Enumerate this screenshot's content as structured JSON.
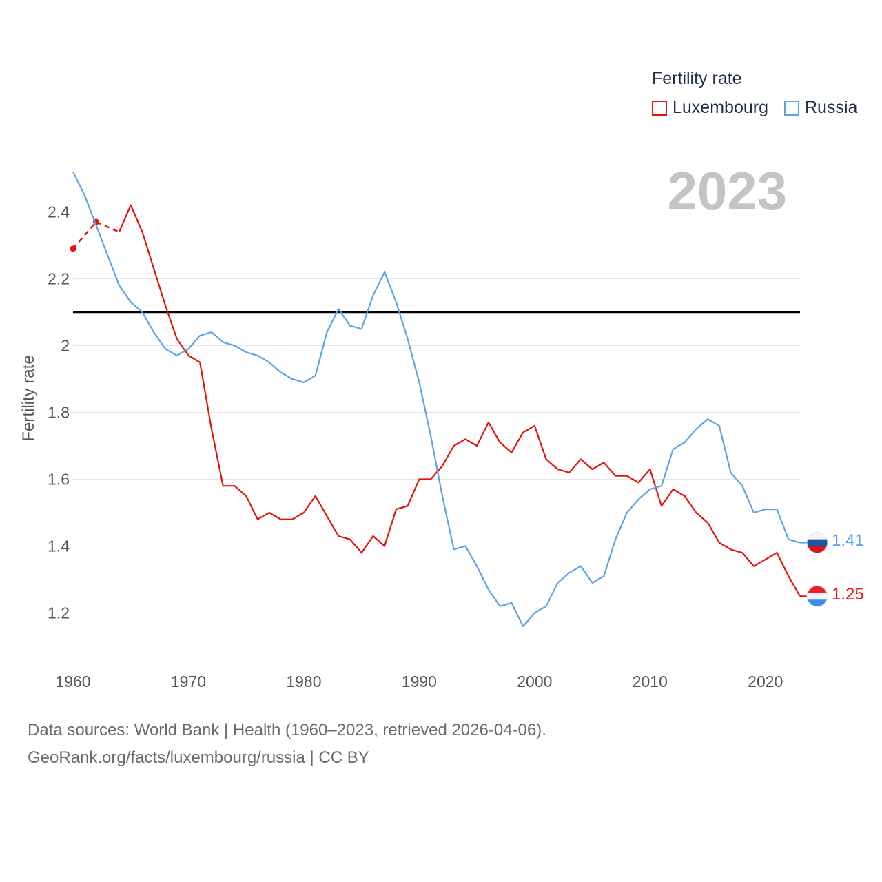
{
  "legend": {
    "title": "Fertility rate",
    "items": [
      {
        "label": "Luxembourg",
        "color": "#e3120b"
      },
      {
        "label": "Russia",
        "color": "#5ba3e6"
      }
    ]
  },
  "big_year": "2023",
  "footer": {
    "line1": "Data sources: World Bank | Health (1960–2023, retrieved 2026-04-06).",
    "line2": "GeoRank.org/facts/luxembourg/russia | CC BY"
  },
  "end_labels": {
    "russia": "1.41",
    "luxembourg": "1.25"
  },
  "chart_data": {
    "type": "line",
    "title": "",
    "xlabel": "",
    "ylabel": "Fertility rate",
    "xlim": [
      1960,
      2023
    ],
    "ylim": [
      1.1,
      2.5
    ],
    "x_ticks": [
      1960,
      1970,
      1980,
      1990,
      2000,
      2010,
      2020
    ],
    "y_ticks": [
      1.2,
      1.4,
      1.6,
      1.8,
      2.0,
      2.2,
      2.4
    ],
    "y_tick_labels": [
      "1.2",
      "1.4",
      "1.6",
      "1.8",
      "2",
      "2.2",
      "2.4"
    ],
    "reference_line": {
      "y": 2.1,
      "color": "#000000"
    },
    "series": [
      {
        "name": "Luxembourg",
        "color": "#e3120b",
        "dashed_points": [
          [
            1960,
            2.29
          ],
          [
            1962,
            2.37
          ],
          [
            1964,
            2.34
          ]
        ],
        "points": [
          [
            1964,
            2.34
          ],
          [
            1965,
            2.42
          ],
          [
            1966,
            2.34
          ],
          [
            1967,
            2.23
          ],
          [
            1968,
            2.12
          ],
          [
            1969,
            2.02
          ],
          [
            1970,
            1.97
          ],
          [
            1971,
            1.95
          ],
          [
            1972,
            1.75
          ],
          [
            1973,
            1.58
          ],
          [
            1974,
            1.58
          ],
          [
            1975,
            1.55
          ],
          [
            1976,
            1.48
          ],
          [
            1977,
            1.5
          ],
          [
            1978,
            1.48
          ],
          [
            1979,
            1.48
          ],
          [
            1980,
            1.5
          ],
          [
            1981,
            1.55
          ],
          [
            1982,
            1.49
          ],
          [
            1983,
            1.43
          ],
          [
            1984,
            1.42
          ],
          [
            1985,
            1.38
          ],
          [
            1986,
            1.43
          ],
          [
            1987,
            1.4
          ],
          [
            1988,
            1.51
          ],
          [
            1989,
            1.52
          ],
          [
            1990,
            1.6
          ],
          [
            1991,
            1.6
          ],
          [
            1992,
            1.64
          ],
          [
            1993,
            1.7
          ],
          [
            1994,
            1.72
          ],
          [
            1995,
            1.7
          ],
          [
            1996,
            1.77
          ],
          [
            1997,
            1.71
          ],
          [
            1998,
            1.68
          ],
          [
            1999,
            1.74
          ],
          [
            2000,
            1.76
          ],
          [
            2001,
            1.66
          ],
          [
            2002,
            1.63
          ],
          [
            2003,
            1.62
          ],
          [
            2004,
            1.66
          ],
          [
            2005,
            1.63
          ],
          [
            2006,
            1.65
          ],
          [
            2007,
            1.61
          ],
          [
            2008,
            1.61
          ],
          [
            2009,
            1.59
          ],
          [
            2010,
            1.63
          ],
          [
            2011,
            1.52
          ],
          [
            2012,
            1.57
          ],
          [
            2013,
            1.55
          ],
          [
            2014,
            1.5
          ],
          [
            2015,
            1.47
          ],
          [
            2016,
            1.41
          ],
          [
            2017,
            1.39
          ],
          [
            2018,
            1.38
          ],
          [
            2019,
            1.34
          ],
          [
            2020,
            1.36
          ],
          [
            2021,
            1.38
          ],
          [
            2022,
            1.31
          ],
          [
            2023,
            1.25
          ]
        ]
      },
      {
        "name": "Russia",
        "color": "#5ba3e6",
        "points": [
          [
            1960,
            2.52
          ],
          [
            1961,
            2.45
          ],
          [
            1962,
            2.36
          ],
          [
            1963,
            2.27
          ],
          [
            1964,
            2.18
          ],
          [
            1965,
            2.13
          ],
          [
            1966,
            2.1
          ],
          [
            1967,
            2.04
          ],
          [
            1968,
            1.99
          ],
          [
            1969,
            1.97
          ],
          [
            1970,
            1.99
          ],
          [
            1971,
            2.03
          ],
          [
            1972,
            2.04
          ],
          [
            1973,
            2.01
          ],
          [
            1974,
            2.0
          ],
          [
            1975,
            1.98
          ],
          [
            1976,
            1.97
          ],
          [
            1977,
            1.95
          ],
          [
            1978,
            1.92
          ],
          [
            1979,
            1.9
          ],
          [
            1980,
            1.89
          ],
          [
            1981,
            1.91
          ],
          [
            1982,
            2.04
          ],
          [
            1983,
            2.11
          ],
          [
            1984,
            2.06
          ],
          [
            1985,
            2.05
          ],
          [
            1986,
            2.15
          ],
          [
            1987,
            2.22
          ],
          [
            1988,
            2.13
          ],
          [
            1989,
            2.02
          ],
          [
            1990,
            1.89
          ],
          [
            1991,
            1.73
          ],
          [
            1992,
            1.55
          ],
          [
            1993,
            1.39
          ],
          [
            1994,
            1.4
          ],
          [
            1995,
            1.34
          ],
          [
            1996,
            1.27
          ],
          [
            1997,
            1.22
          ],
          [
            1998,
            1.23
          ],
          [
            1999,
            1.16
          ],
          [
            2000,
            1.2
          ],
          [
            2001,
            1.22
          ],
          [
            2002,
            1.29
          ],
          [
            2003,
            1.32
          ],
          [
            2004,
            1.34
          ],
          [
            2005,
            1.29
          ],
          [
            2006,
            1.31
          ],
          [
            2007,
            1.42
          ],
          [
            2008,
            1.5
          ],
          [
            2009,
            1.54
          ],
          [
            2010,
            1.57
          ],
          [
            2011,
            1.58
          ],
          [
            2012,
            1.69
          ],
          [
            2013,
            1.71
          ],
          [
            2014,
            1.75
          ],
          [
            2015,
            1.78
          ],
          [
            2016,
            1.76
          ],
          [
            2017,
            1.62
          ],
          [
            2018,
            1.58
          ],
          [
            2019,
            1.5
          ],
          [
            2020,
            1.51
          ],
          [
            2021,
            1.51
          ],
          [
            2022,
            1.42
          ],
          [
            2023,
            1.41
          ]
        ]
      }
    ]
  }
}
